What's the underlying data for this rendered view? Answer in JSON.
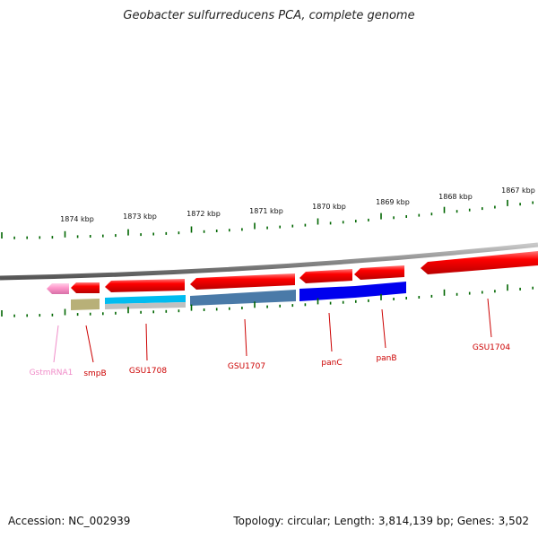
{
  "title": "Geobacter sulfurreducens PCA, complete genome",
  "footer": {
    "accession": "Accession: NC_002939",
    "summary": "Topology: circular; Length: 3,814,139 bp; Genes: 3,502"
  },
  "ticks": [
    "1874 kbp",
    "1873 kbp",
    "1872 kbp",
    "1871 kbp",
    "1870 kbp",
    "1869 kbp",
    "1868 kbp",
    "1867 kbp"
  ],
  "genes": [
    {
      "name": "GstmRNA1",
      "color": "#f08cc8"
    },
    {
      "name": "smpB",
      "color": "#cc0000"
    },
    {
      "name": "GSU1708",
      "color": "#cc0000"
    },
    {
      "name": "GSU1707",
      "color": "#cc0000"
    },
    {
      "name": "panC",
      "color": "#cc0000"
    },
    {
      "name": "panB",
      "color": "#cc0000"
    },
    {
      "name": "GSU1704",
      "color": "#cc0000"
    }
  ],
  "colors": {
    "gene_red": "#ff0000",
    "rna_pink": "#ff99cc",
    "tick_green": "#006600",
    "backbone": "#888888",
    "feature_olive": "#b8b078",
    "feature_cyan": "#00bcf0",
    "feature_steel": "#4a7aa8",
    "feature_blue": "#0000ee"
  }
}
